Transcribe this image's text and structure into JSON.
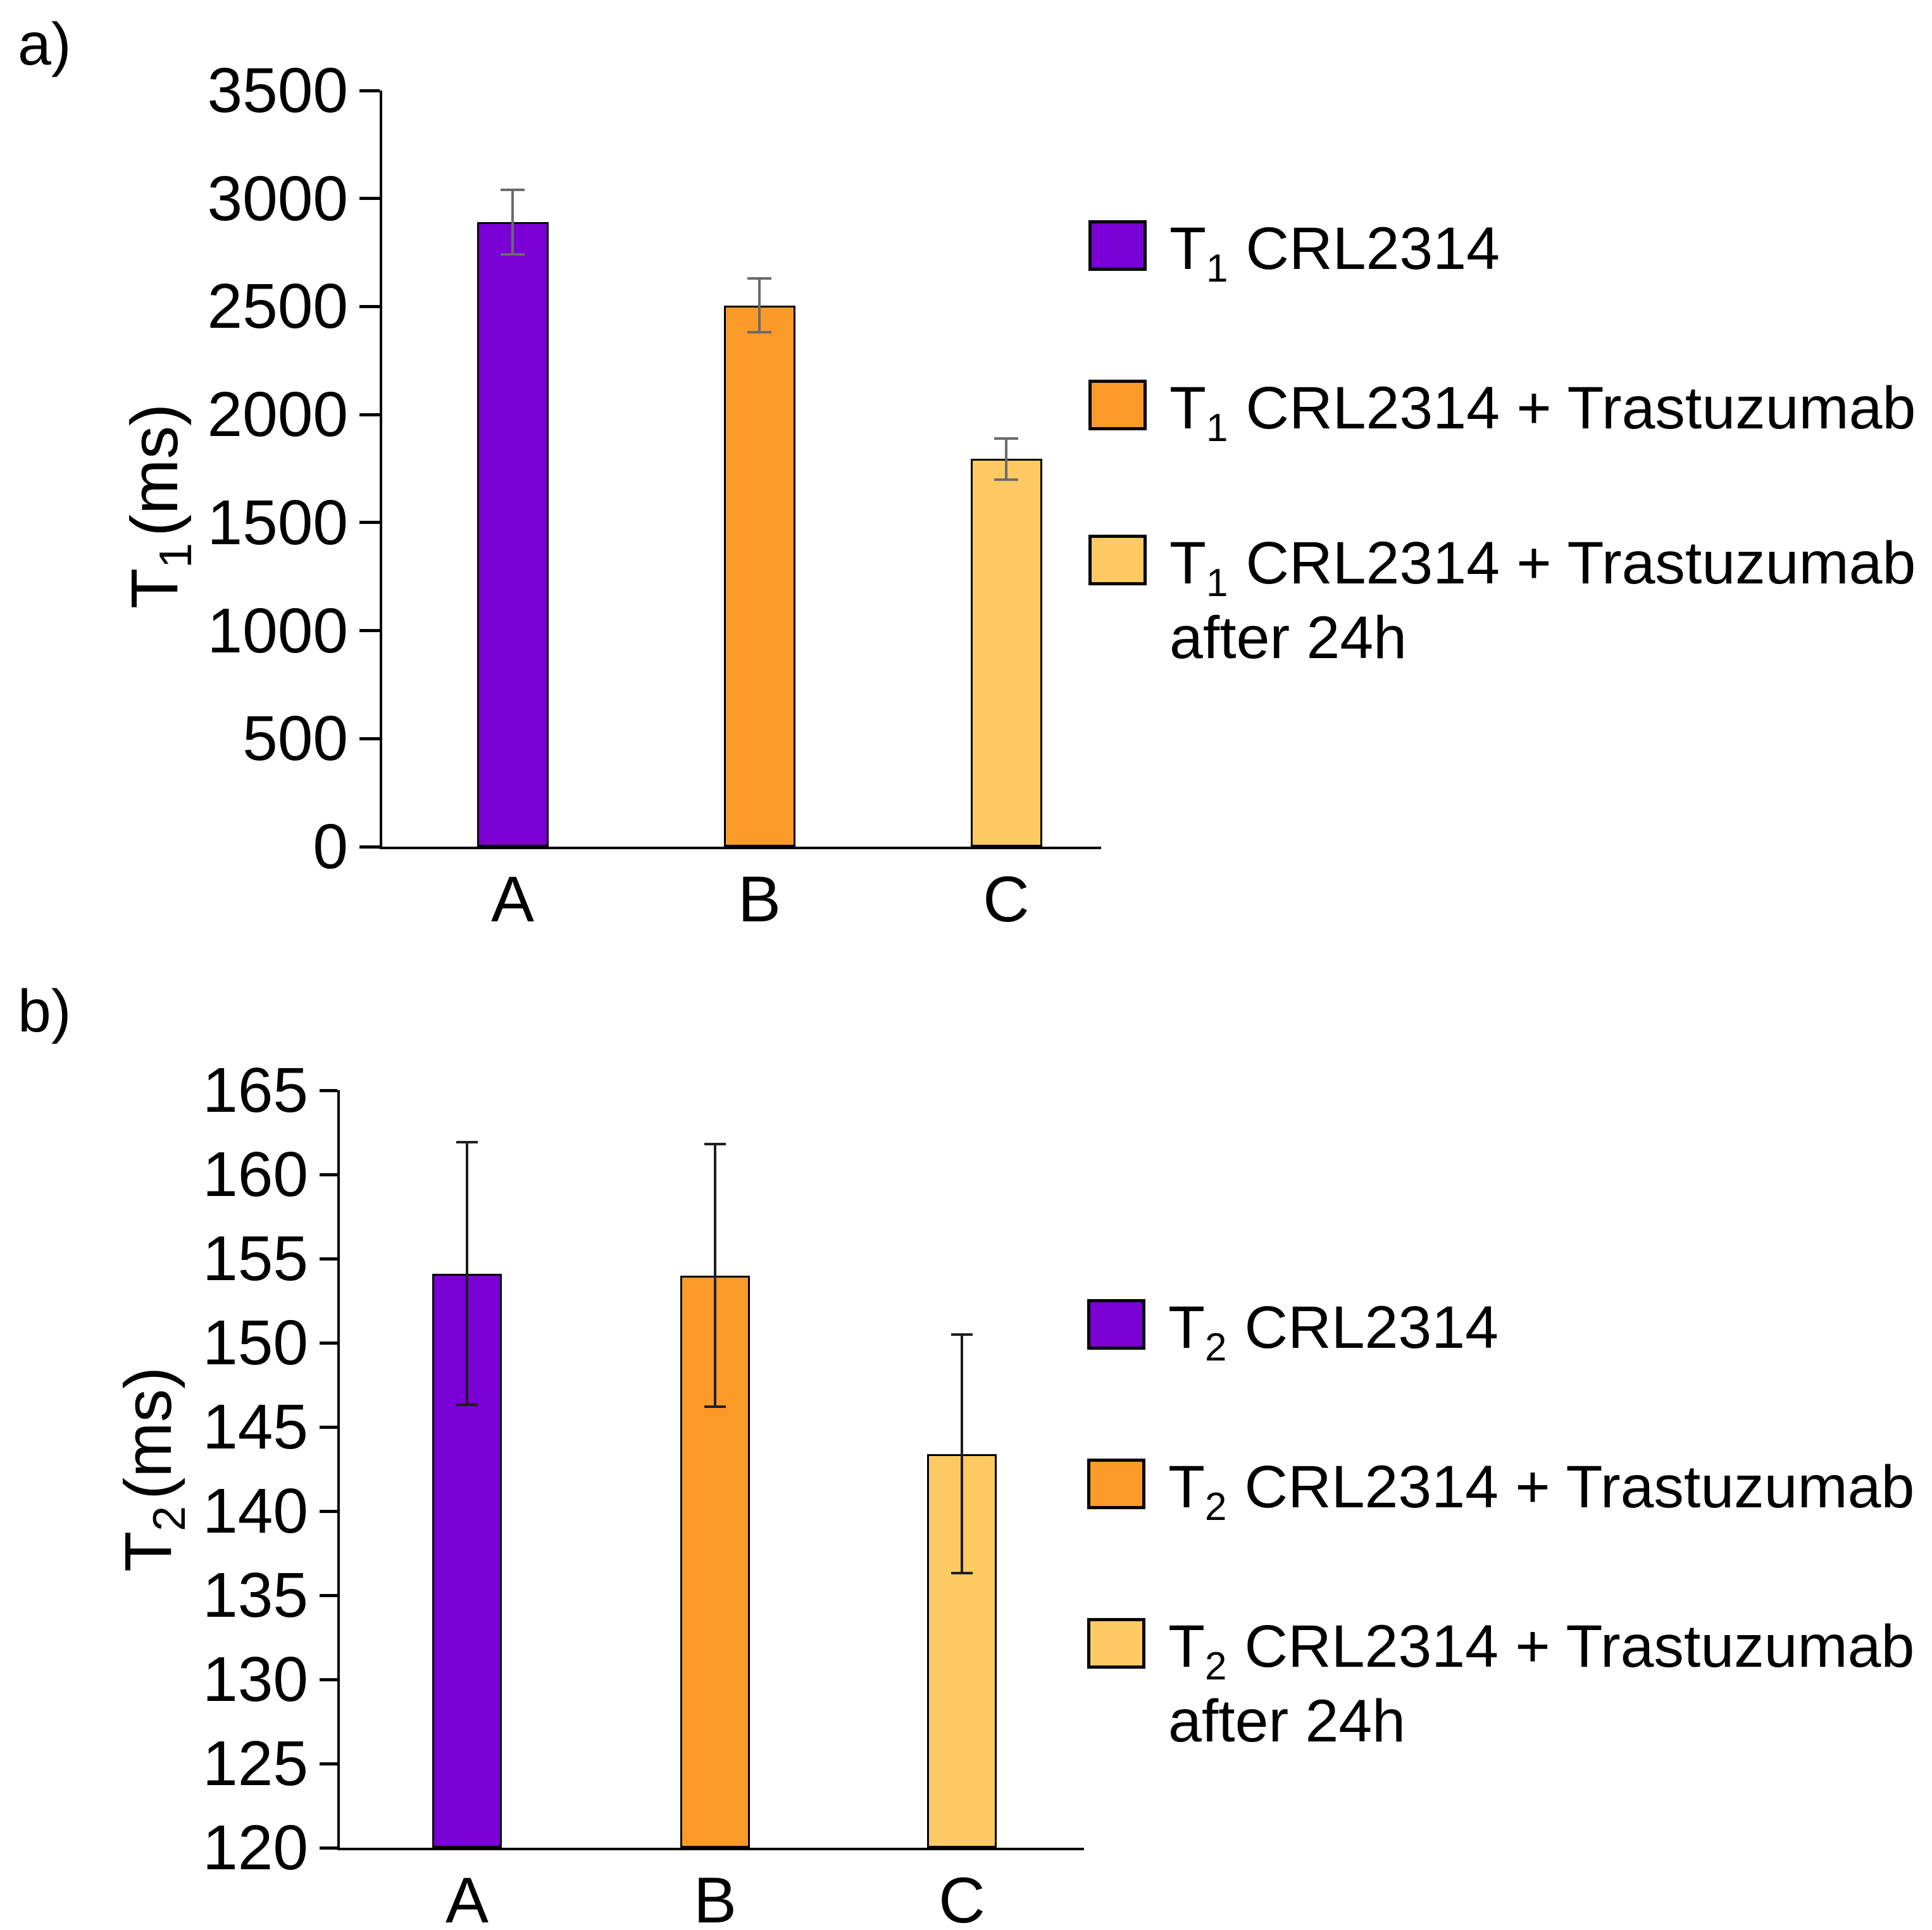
{
  "page": {
    "background": "#FFFFFF"
  },
  "colors": {
    "series_purple": "#7A00D6",
    "series_orange": "#FB9A28",
    "series_light_orange": "#FDC963",
    "axis": "#000000"
  },
  "chart_data": [
    {
      "id": "a",
      "type": "bar",
      "panel_label": "a)",
      "title": "",
      "categories": [
        "A",
        "B",
        "C"
      ],
      "values": [
        2890,
        2505,
        1795
      ],
      "errors": [
        150,
        125,
        95
      ],
      "bar_colors": [
        "#7A00D6",
        "#FB9A28",
        "#FDC963"
      ],
      "xlabel": "",
      "ylabel": "T1 (ms)",
      "ylabel_parts": {
        "base": "T",
        "sub": "1",
        "unit": "(ms)"
      },
      "ylim": [
        0,
        3500
      ],
      "ytick_step": 500,
      "ytick_labels": [
        "3500",
        "3000",
        "2500",
        "2000",
        "1500",
        "1000",
        "500",
        "0"
      ],
      "grid": false,
      "error_bar_color": "#6b6b6b",
      "legend_position": "right",
      "legend": [
        {
          "color": "#7A00D6",
          "prefix": "T",
          "sub": "1",
          "label": "CRL2314",
          "label_line2": ""
        },
        {
          "color": "#FB9A28",
          "prefix": "T",
          "sub": "1",
          "label": "CRL2314 + Trastuzumab",
          "label_line2": ""
        },
        {
          "color": "#FDC963",
          "prefix": "T",
          "sub": "1",
          "label": "CRL2314 + Trastuzumab",
          "label_line2": "after 24h"
        }
      ]
    },
    {
      "id": "b",
      "type": "bar",
      "panel_label": "b)",
      "title": "",
      "categories": [
        "A",
        "B",
        "C"
      ],
      "values": [
        154.1,
        154.0,
        143.4
      ],
      "errors": [
        7.8,
        7.8,
        7.1
      ],
      "bar_colors": [
        "#7A00D6",
        "#FB9A28",
        "#FDC963"
      ],
      "xlabel": "",
      "ylabel": "T2 (ms)",
      "ylabel_parts": {
        "base": "T",
        "sub": "2",
        "unit": "(ms)"
      },
      "ylim": [
        120,
        165
      ],
      "ytick_step": 5,
      "ytick_labels": [
        "165",
        "160",
        "155",
        "150",
        "145",
        "140",
        "135",
        "130",
        "125",
        "120"
      ],
      "grid": false,
      "error_bar_color": "#1f1f1f",
      "legend_position": "right",
      "legend": [
        {
          "color": "#7A00D6",
          "prefix": "T",
          "sub": "2",
          "label": "CRL2314",
          "label_line2": ""
        },
        {
          "color": "#FB9A28",
          "prefix": "T",
          "sub": "2",
          "label": "CRL2314 + Trastuzumab",
          "label_line2": ""
        },
        {
          "color": "#FDC963",
          "prefix": "T",
          "sub": "2",
          "label": "CRL2314 + Trastuzumab",
          "label_line2": "after 24h"
        }
      ]
    }
  ]
}
